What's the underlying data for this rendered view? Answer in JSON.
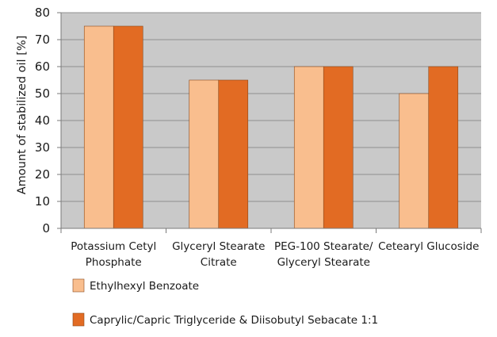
{
  "chart_data": {
    "type": "bar",
    "categories": [
      [
        "Potassium Cetyl",
        "Phosphate"
      ],
      [
        "Glyceryl Stearate",
        "Citrate"
      ],
      [
        "PEG-100 Stearate/",
        "Glyceryl Stearate"
      ],
      [
        "Cetearyl Glucoside"
      ]
    ],
    "series": [
      {
        "name": "Ethylhexyl Benzoate",
        "values": [
          75,
          55,
          60,
          50
        ],
        "color": "#f9be8e"
      },
      {
        "name": "Caprylic/Capric Triglyceride & Diisobutyl Sebacate 1:1",
        "values": [
          75,
          55,
          60,
          60
        ],
        "color": "#e26b23"
      }
    ],
    "ylabel": "Amount of stabilized oil [%]",
    "xlabel": "",
    "ylim": [
      0,
      80
    ],
    "yticks": [
      0,
      10,
      20,
      30,
      40,
      50,
      60,
      70,
      80
    ],
    "grid": true,
    "plot_background": "#c9c9c9",
    "grid_color": "#8f8f8f",
    "legend_position": "bottom-left"
  }
}
